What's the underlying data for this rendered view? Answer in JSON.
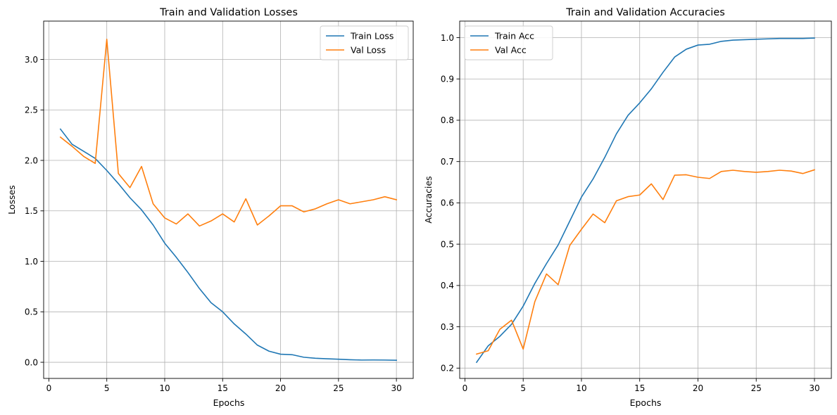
{
  "chart_data": [
    {
      "type": "line",
      "title": "Train and Validation Losses",
      "xlabel": "Epochs",
      "ylabel": "Losses",
      "xlim": [
        -0.45,
        31.45
      ],
      "ylim": [
        -0.16,
        3.38
      ],
      "xticks": [
        0,
        5,
        10,
        15,
        20,
        25,
        30
      ],
      "yticks": [
        0.0,
        0.5,
        1.0,
        1.5,
        2.0,
        2.5,
        3.0
      ],
      "ytick_decimals": 1,
      "grid": true,
      "legend_position": "top-right",
      "x": [
        1,
        2,
        3,
        4,
        5,
        6,
        7,
        8,
        9,
        10,
        11,
        12,
        13,
        14,
        15,
        16,
        17,
        18,
        19,
        20,
        21,
        22,
        23,
        24,
        25,
        26,
        27,
        28,
        29,
        30
      ],
      "series": [
        {
          "name": "Train Loss",
          "color": "#1f77b4",
          "values": [
            2.31,
            2.16,
            2.09,
            2.02,
            1.9,
            1.77,
            1.63,
            1.51,
            1.36,
            1.18,
            1.04,
            0.89,
            0.73,
            0.59,
            0.5,
            0.38,
            0.28,
            0.17,
            0.11,
            0.08,
            0.075,
            0.05,
            0.04,
            0.035,
            0.03,
            0.025,
            0.022,
            0.023,
            0.022,
            0.02
          ]
        },
        {
          "name": "Val Loss",
          "color": "#ff7f0e",
          "values": [
            2.23,
            2.14,
            2.04,
            1.97,
            3.2,
            1.87,
            1.73,
            1.94,
            1.57,
            1.43,
            1.37,
            1.47,
            1.35,
            1.4,
            1.47,
            1.39,
            1.62,
            1.36,
            1.45,
            1.55,
            1.55,
            1.49,
            1.52,
            1.57,
            1.61,
            1.57,
            1.59,
            1.61,
            1.64,
            1.61
          ]
        }
      ]
    },
    {
      "type": "line",
      "title": "Train and Validation Accuracies",
      "xlabel": "Epochs",
      "ylabel": "Accuracies",
      "xlim": [
        -0.45,
        31.45
      ],
      "ylim": [
        0.175,
        1.04
      ],
      "xticks": [
        0,
        5,
        10,
        15,
        20,
        25,
        30
      ],
      "yticks": [
        0.2,
        0.3,
        0.4,
        0.5,
        0.6,
        0.7,
        0.8,
        0.9,
        1.0
      ],
      "ytick_decimals": 1,
      "grid": true,
      "legend_position": "top-left",
      "x": [
        1,
        2,
        3,
        4,
        5,
        6,
        7,
        8,
        9,
        10,
        11,
        12,
        13,
        14,
        15,
        16,
        17,
        18,
        19,
        20,
        21,
        22,
        23,
        24,
        25,
        26,
        27,
        28,
        29,
        30
      ],
      "series": [
        {
          "name": "Train Acc",
          "color": "#1f77b4",
          "values": [
            0.214,
            0.254,
            0.277,
            0.306,
            0.35,
            0.405,
            0.453,
            0.498,
            0.556,
            0.614,
            0.658,
            0.71,
            0.767,
            0.812,
            0.842,
            0.876,
            0.916,
            0.953,
            0.972,
            0.982,
            0.984,
            0.991,
            0.994,
            0.995,
            0.996,
            0.997,
            0.998,
            0.998,
            0.998,
            0.999
          ]
        },
        {
          "name": "Val Acc",
          "color": "#ff7f0e",
          "values": [
            0.234,
            0.242,
            0.294,
            0.316,
            0.246,
            0.361,
            0.428,
            0.402,
            0.497,
            0.536,
            0.573,
            0.552,
            0.605,
            0.615,
            0.619,
            0.646,
            0.608,
            0.667,
            0.668,
            0.662,
            0.659,
            0.676,
            0.679,
            0.676,
            0.674,
            0.676,
            0.679,
            0.677,
            0.671,
            0.68
          ]
        }
      ]
    }
  ]
}
